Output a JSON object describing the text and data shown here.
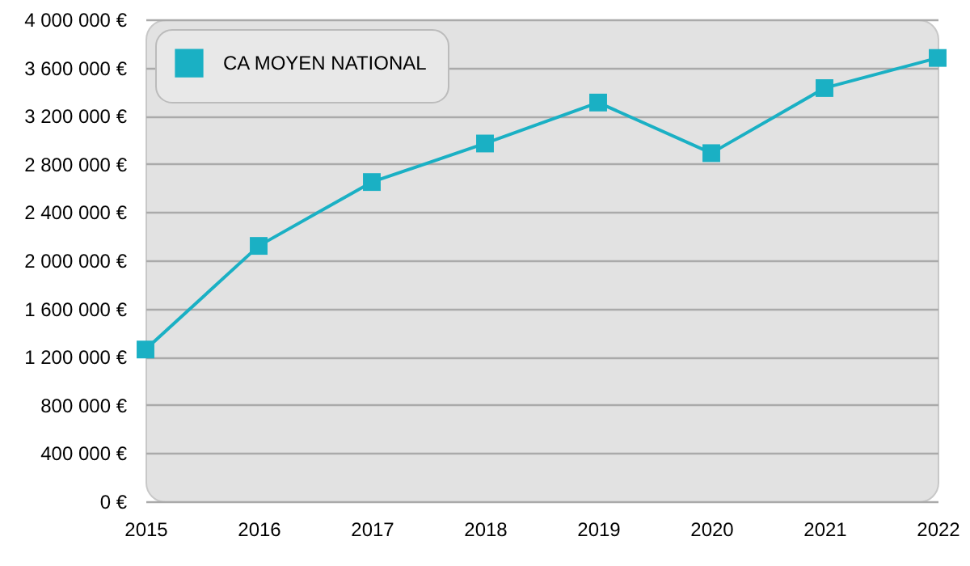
{
  "chart_data": {
    "type": "line",
    "categories": [
      "2015",
      "2016",
      "2017",
      "2018",
      "2019",
      "2020",
      "2021",
      "2022"
    ],
    "series": [
      {
        "name": "CA MOYEN NATIONAL",
        "color": "#1ab0c4",
        "values": [
          1260000,
          2120000,
          2650000,
          2970000,
          3310000,
          2890000,
          3430000,
          3680000
        ]
      }
    ],
    "ylim": [
      0,
      4000000
    ],
    "yticks": [
      {
        "value": 0,
        "label": "0 €"
      },
      {
        "value": 400000,
        "label": "400 000 €"
      },
      {
        "value": 800000,
        "label": "800 000 €"
      },
      {
        "value": 1200000,
        "label": "1 200 000 €"
      },
      {
        "value": 1600000,
        "label": "1 600 000 €"
      },
      {
        "value": 2000000,
        "label": "2 000 000 €"
      },
      {
        "value": 2400000,
        "label": "2 400 000 €"
      },
      {
        "value": 2800000,
        "label": "2 800 000 €"
      },
      {
        "value": 3200000,
        "label": "3 200 000 €"
      },
      {
        "value": 3600000,
        "label": "3 600 000 €"
      },
      {
        "value": 4000000,
        "label": "4 000 000 €"
      }
    ],
    "grid": "y",
    "legend": "top left",
    "marker": "square",
    "line_style": "solid"
  }
}
